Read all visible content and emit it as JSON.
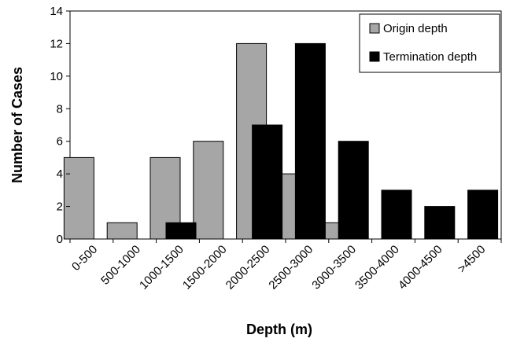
{
  "chart_data": {
    "type": "bar",
    "xlabel": "Depth (m)",
    "ylabel": "Number of Cases",
    "ylim": [
      0,
      14
    ],
    "yticks": [
      0,
      2,
      4,
      6,
      8,
      10,
      12,
      14
    ],
    "categories": [
      "0-500",
      "500-1000",
      "1000-1500",
      "1500-2000",
      "2000-2500",
      "2500-3000",
      "3000-3500",
      "3500-4000",
      "4000-4500",
      ">4500"
    ],
    "series": [
      {
        "name": "Origin depth",
        "color": "#a6a6a6",
        "values": [
          5,
          1,
          5,
          6,
          12,
          4,
          1,
          0,
          0,
          0
        ]
      },
      {
        "name": "Termination depth",
        "color": "#000000",
        "values": [
          0,
          0,
          1,
          0,
          7,
          12,
          6,
          3,
          2,
          3
        ]
      }
    ],
    "legend_position": "top-right",
    "grid": false
  }
}
